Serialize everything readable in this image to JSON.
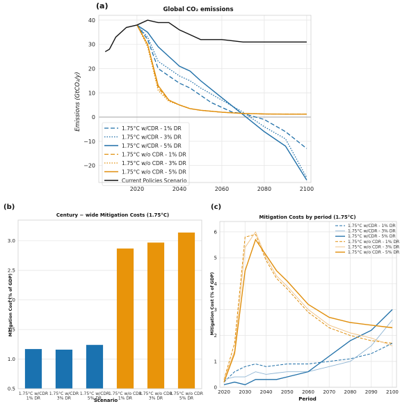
{
  "chart_data": [
    {
      "panel": "(a)",
      "type": "line",
      "title": "Global CO₂ emissions",
      "ylabel": "Emissions (GtCO₂/y)",
      "xlim": [
        2002,
        2102
      ],
      "ylim": [
        -27,
        42
      ],
      "xticks": [
        "2020",
        "2040",
        "2060",
        "2080",
        "2100"
      ],
      "yticks": [
        "40",
        "30",
        "20",
        "10",
        "0",
        "−10",
        "−20"
      ],
      "legend_position": "lower-left",
      "series": [
        {
          "name": "1.75°C w/CDR - 1% DR",
          "color": "#1f6fa8",
          "dash": "6,3",
          "width": 1.3,
          "x": [
            2020,
            2025,
            2030,
            2035,
            2040,
            2045,
            2050,
            2055,
            2060,
            2065,
            2070,
            2080,
            2090,
            2100
          ],
          "y": [
            38,
            32,
            20,
            17,
            14,
            12,
            9,
            6,
            4,
            2,
            1.5,
            -1,
            -6,
            -13
          ]
        },
        {
          "name": "1.75°C w/CDR - 3% DR",
          "color": "#1f6fa8",
          "dash": "1.5,2",
          "width": 1.3,
          "x": [
            2020,
            2025,
            2030,
            2035,
            2040,
            2045,
            2050,
            2060,
            2070,
            2080,
            2090,
            2100
          ],
          "y": [
            38,
            33,
            23,
            20,
            17,
            15,
            12,
            7,
            2,
            -4,
            -9,
            -25
          ]
        },
        {
          "name": "1.75°C w/CDR - 5% DR",
          "color": "#1f6fa8",
          "dash": "",
          "width": 1.4,
          "x": [
            2020,
            2025,
            2030,
            2035,
            2040,
            2045,
            2050,
            2060,
            2070,
            2080,
            2090,
            2100
          ],
          "y": [
            38,
            35,
            29,
            25,
            21,
            19,
            15,
            8,
            1,
            -6,
            -12,
            -26
          ]
        },
        {
          "name": "1.75°C w/o CDR - 1% DR",
          "color": "#e08e0b",
          "dash": "6,3",
          "width": 1.3,
          "x": [
            2020,
            2025,
            2030,
            2035,
            2040,
            2045,
            2050,
            2060,
            2070,
            2080,
            2090,
            2100
          ],
          "y": [
            38,
            30,
            12,
            7,
            5,
            3.5,
            2.8,
            2,
            1.5,
            1.3,
            1.2,
            1.2
          ]
        },
        {
          "name": "1.75°C w/o CDR - 3% DR",
          "color": "#e08e0b",
          "dash": "1.5,2",
          "width": 1.3,
          "x": [
            2020,
            2025,
            2030,
            2035,
            2040,
            2045,
            2050,
            2060,
            2070,
            2080,
            2090,
            2100
          ],
          "y": [
            38,
            29,
            11,
            6.5,
            5,
            3.5,
            2.8,
            2,
            1.5,
            1.3,
            1.2,
            1.2
          ]
        },
        {
          "name": "1.75°C w/o CDR - 5% DR",
          "color": "#e08e0b",
          "dash": "",
          "width": 1.4,
          "x": [
            2020,
            2025,
            2030,
            2035,
            2040,
            2045,
            2050,
            2060,
            2070,
            2080,
            2090,
            2100
          ],
          "y": [
            38,
            30,
            13,
            7,
            5,
            3.5,
            2.8,
            2,
            1.5,
            1.3,
            1.2,
            1.2
          ]
        },
        {
          "name": "Current Policies Scenario",
          "color": "#111111",
          "dash": "",
          "width": 1.4,
          "x": [
            2005,
            2007,
            2010,
            2015,
            2020,
            2025,
            2030,
            2035,
            2040,
            2045,
            2050,
            2060,
            2070,
            2080,
            2090,
            2100
          ],
          "y": [
            27,
            28,
            33,
            37,
            38,
            40,
            39,
            39,
            36,
            34,
            32,
            32,
            31,
            31,
            31,
            31
          ]
        }
      ]
    },
    {
      "panel": "(b)",
      "type": "bar",
      "title": "Century − wide Mitigation Costs (1.75°C)",
      "xlabel": "Scenario",
      "ylabel": "Mitigation Cost (% of GDP)",
      "ylim": [
        0.5,
        3.35
      ],
      "yticks": [
        "3.0",
        "2.5",
        "2.0",
        "1.5",
        "1.0",
        "0.5"
      ],
      "categories": [
        [
          "1.75°C w/CDR",
          "1% DR"
        ],
        [
          "1.75°C w/CDR",
          "3% DR"
        ],
        [
          "1.75°C w/CDR",
          "5% DR"
        ],
        [
          "1.75°C w/o CDR",
          "1% DR"
        ],
        [
          "1.75°C w/o CDR",
          "3% DR"
        ],
        [
          "1.75°C w/o CDR",
          "5% DR"
        ]
      ],
      "values": [
        1.17,
        1.16,
        1.24,
        2.87,
        2.97,
        3.14
      ],
      "colors": [
        "#1a72b0",
        "#1a72b0",
        "#1a72b0",
        "#e8940a",
        "#e8940a",
        "#e8940a"
      ]
    },
    {
      "panel": "(c)",
      "type": "line",
      "title": "Mitigation Costs by period (1.75°C)",
      "xlabel": "Period",
      "ylabel": "Mitigation Cost (% of GDP)",
      "xlim": [
        2018,
        2102
      ],
      "ylim": [
        0,
        6.4
      ],
      "xticks": [
        "2020",
        "2030",
        "2040",
        "2050",
        "2060",
        "2070",
        "2080",
        "2090",
        "2100"
      ],
      "yticks": [
        "6",
        "5",
        "4",
        "3",
        "2",
        "1",
        "0"
      ],
      "legend_position": "top-right",
      "series": [
        {
          "name": "1.75°C w/CDR - 1% DR",
          "color": "#1f6fa8",
          "dash": "4,2",
          "width": 1.0,
          "x": [
            2020,
            2025,
            2030,
            2035,
            2040,
            2045,
            2050,
            2060,
            2070,
            2080,
            2090,
            2100
          ],
          "y": [
            0.2,
            0.6,
            0.8,
            0.9,
            0.8,
            0.85,
            0.9,
            0.9,
            1.0,
            1.1,
            1.3,
            1.7
          ]
        },
        {
          "name": "1.75°C w/CDR - 3% DR",
          "color": "#8fb5d4",
          "dash": "",
          "width": 0.9,
          "x": [
            2020,
            2025,
            2030,
            2035,
            2040,
            2045,
            2050,
            2060,
            2070,
            2080,
            2090,
            2100
          ],
          "y": [
            0.3,
            0.4,
            0.4,
            0.6,
            0.5,
            0.55,
            0.6,
            0.6,
            0.8,
            1.0,
            1.6,
            2.6
          ]
        },
        {
          "name": "1.75°C w/CDR - 5% DR",
          "color": "#1f6fa8",
          "dash": "",
          "width": 1.3,
          "x": [
            2020,
            2025,
            2030,
            2035,
            2040,
            2045,
            2050,
            2060,
            2070,
            2080,
            2090,
            2100
          ],
          "y": [
            0.1,
            0.2,
            0.1,
            0.3,
            0.3,
            0.3,
            0.4,
            0.6,
            1.2,
            1.8,
            2.2,
            3.0
          ]
        },
        {
          "name": "1.75°C w/o CDR - 1% DR",
          "color": "#e08e0b",
          "dash": "4,2",
          "width": 1.0,
          "x": [
            2020,
            2025,
            2030,
            2035,
            2040,
            2045,
            2050,
            2060,
            2070,
            2080,
            2090,
            2100
          ],
          "y": [
            0.3,
            1.7,
            5.8,
            5.9,
            4.9,
            4.2,
            3.8,
            2.9,
            2.3,
            2.0,
            1.8,
            1.7
          ]
        },
        {
          "name": "1.75°C w/o CDR - 3% DR",
          "color": "#f0c080",
          "dash": "",
          "width": 0.9,
          "x": [
            2020,
            2025,
            2030,
            2035,
            2040,
            2045,
            2050,
            2060,
            2070,
            2080,
            2090,
            2100
          ],
          "y": [
            0.3,
            1.4,
            5.4,
            6.0,
            5.0,
            4.3,
            3.9,
            3.0,
            2.4,
            2.1,
            1.9,
            1.6
          ]
        },
        {
          "name": "1.75°C w/o CDR - 5% DR",
          "color": "#e08e0b",
          "dash": "",
          "width": 1.4,
          "x": [
            2020,
            2025,
            2030,
            2035,
            2040,
            2045,
            2050,
            2060,
            2070,
            2080,
            2090,
            2100
          ],
          "y": [
            0.2,
            1.3,
            4.5,
            5.7,
            5.1,
            4.5,
            4.1,
            3.2,
            2.7,
            2.5,
            2.4,
            2.3
          ]
        }
      ]
    }
  ]
}
